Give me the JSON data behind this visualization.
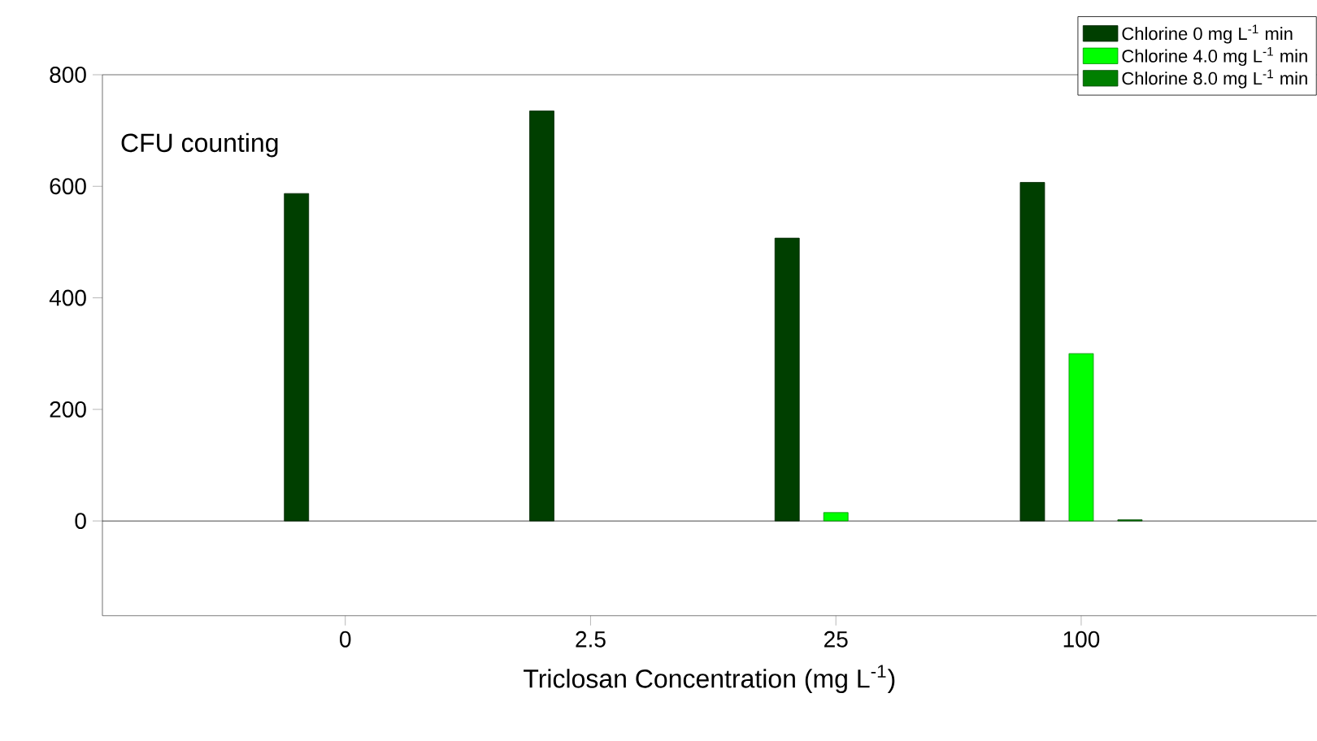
{
  "chart_data": {
    "type": "bar",
    "xlabel": "Triclosan Concentration (mg L$^{-1}$)",
    "categories": [
      "0",
      "2.5",
      "25",
      "100"
    ],
    "series": [
      {
        "name": "Chlorine 0 mg L$^{-1}$ min",
        "color": "#003f00",
        "values": [
          587,
          735,
          507,
          607
        ]
      },
      {
        "name": "Chlorine 4.0 mg L$^{-1}$ min",
        "color": "#00ff00",
        "values": [
          null,
          null,
          15,
          300
        ]
      },
      {
        "name": "Chlorine 8.0 mg L$^{-1}$ min",
        "color": "#007f00",
        "values": [
          null,
          null,
          null,
          2
        ]
      }
    ],
    "ylim": [
      -170,
      800
    ],
    "yticks": [
      0,
      200,
      400,
      600,
      800
    ],
    "ref_lines": [
      {
        "axis": "y",
        "value": 0
      }
    ],
    "annotations": [
      "CFU counting"
    ],
    "legend": "top right"
  }
}
